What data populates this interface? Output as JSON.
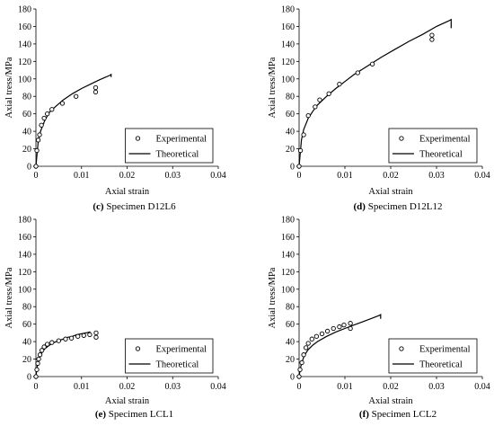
{
  "chart_data": [
    {
      "type": "scatter",
      "caption_letter": "(c)",
      "caption_text": " Specimen D12L6",
      "xlabel": "Axial strain",
      "ylabel": "Axial tress/MPa",
      "xlim": [
        0,
        0.04
      ],
      "ylim": [
        0,
        180
      ],
      "xticks": [
        "0",
        "0.01",
        "0.02",
        "0.03",
        "0.04"
      ],
      "yticks": [
        "0",
        "20",
        "40",
        "60",
        "80",
        "100",
        "120",
        "140",
        "160",
        "180"
      ],
      "legend_position": "bottom-right",
      "series": [
        {
          "name": "Experimental",
          "style": "markers",
          "x": [
            0,
            0.0002,
            0.0005,
            0.0008,
            0.0012,
            0.0018,
            0.0025,
            0.0035,
            0.0058,
            0.0088,
            0.0131,
            0.0131
          ],
          "y": [
            0,
            18,
            30,
            36,
            47,
            55,
            60,
            65,
            72,
            80,
            90,
            85
          ]
        },
        {
          "name": "Theoretical",
          "style": "line",
          "x": [
            0,
            0.0005,
            0.001,
            0.002,
            0.003,
            0.004,
            0.006,
            0.008,
            0.01,
            0.012,
            0.014,
            0.0162,
            0.0165,
            0.0165
          ],
          "y": [
            0,
            28,
            40,
            53,
            62,
            67,
            76,
            83,
            89,
            94,
            99,
            104,
            105,
            102
          ]
        }
      ]
    },
    {
      "type": "scatter",
      "caption_letter": "(d)",
      "caption_text": " Specimen D12L12",
      "xlabel": "Axial strain",
      "ylabel": "Axial tress/MPa",
      "xlim": [
        0,
        0.04
      ],
      "ylim": [
        0,
        180
      ],
      "xticks": [
        "0",
        "0.01",
        "0.02",
        "0.03",
        "0.04"
      ],
      "yticks": [
        "0",
        "20",
        "40",
        "60",
        "80",
        "100",
        "120",
        "140",
        "160",
        "180"
      ],
      "legend_position": "bottom-right",
      "series": [
        {
          "name": "Experimental",
          "style": "markers",
          "x": [
            0,
            0.0003,
            0.001,
            0.002,
            0.0035,
            0.0045,
            0.0065,
            0.0088,
            0.0128,
            0.016,
            0.029,
            0.029
          ],
          "y": [
            0,
            18,
            36,
            58,
            68,
            76,
            83,
            94,
            107,
            117,
            150,
            145
          ]
        },
        {
          "name": "Theoretical",
          "style": "line",
          "x": [
            0,
            0.0005,
            0.001,
            0.002,
            0.003,
            0.004,
            0.006,
            0.008,
            0.01,
            0.012,
            0.015,
            0.018,
            0.021,
            0.024,
            0.027,
            0.03,
            0.0325,
            0.0332,
            0.0332
          ],
          "y": [
            0,
            30,
            42,
            55,
            63,
            70,
            80,
            89,
            97,
            105,
            115,
            125,
            134,
            143,
            151,
            160,
            166,
            168,
            158
          ]
        }
      ]
    },
    {
      "type": "scatter",
      "caption_letter": "(e)",
      "caption_text": " Specimen LCL1",
      "xlabel": "Axial strain",
      "ylabel": "Axial tress/MPa",
      "xlim": [
        0,
        0.04
      ],
      "ylim": [
        0,
        180
      ],
      "xticks": [
        "0",
        "0.01",
        "0.02",
        "0.03",
        "0.04"
      ],
      "yticks": [
        "0",
        "20",
        "40",
        "60",
        "80",
        "100",
        "120",
        "140",
        "160",
        "180"
      ],
      "legend_position": "bottom-right",
      "series": [
        {
          "name": "Experimental",
          "style": "markers",
          "x": [
            0,
            0.0002,
            0.0004,
            0.0006,
            0.0009,
            0.0013,
            0.0018,
            0.0025,
            0.0035,
            0.005,
            0.0065,
            0.0078,
            0.0092,
            0.0105,
            0.0118,
            0.0132,
            0.0132
          ],
          "y": [
            0,
            8,
            15,
            20,
            25,
            30,
            34,
            37,
            39,
            41,
            43,
            44,
            46,
            47,
            48,
            50,
            45
          ]
        },
        {
          "name": "Theoretical",
          "style": "line",
          "x": [
            0,
            0.0003,
            0.0006,
            0.001,
            0.0015,
            0.002,
            0.003,
            0.004,
            0.005,
            0.006,
            0.007,
            0.008,
            0.009,
            0.01,
            0.011,
            0.0118,
            0.0118
          ],
          "y": [
            0,
            12,
            18,
            24,
            29,
            32,
            36,
            39,
            41,
            43,
            45,
            46,
            48,
            49,
            50,
            51,
            48
          ]
        }
      ]
    },
    {
      "type": "scatter",
      "caption_letter": "(f)",
      "caption_text": " Specimen LCL2",
      "xlabel": "Axial strain",
      "ylabel": "Axial tress/MPa",
      "xlim": [
        0,
        0.04
      ],
      "ylim": [
        0,
        180
      ],
      "xticks": [
        "0",
        "0.01",
        "0.02",
        "0.03",
        "0.04"
      ],
      "yticks": [
        "0",
        "20",
        "40",
        "60",
        "80",
        "100",
        "120",
        "140",
        "160",
        "180"
      ],
      "legend_position": "bottom-right",
      "series": [
        {
          "name": "Experimental",
          "style": "markers",
          "x": [
            0,
            0.0002,
            0.0006,
            0.001,
            0.0015,
            0.002,
            0.0028,
            0.0038,
            0.005,
            0.0062,
            0.0075,
            0.0088,
            0.0098,
            0.0112,
            0.0112
          ],
          "y": [
            0,
            8,
            16,
            25,
            33,
            38,
            43,
            46,
            49,
            52,
            55,
            57,
            59,
            61,
            55
          ]
        },
        {
          "name": "Theoretical",
          "style": "line",
          "x": [
            0,
            0.0003,
            0.0006,
            0.001,
            0.0015,
            0.002,
            0.003,
            0.004,
            0.006,
            0.008,
            0.01,
            0.012,
            0.014,
            0.016,
            0.0175,
            0.0178,
            0.0178
          ],
          "y": [
            0,
            10,
            16,
            22,
            27,
            31,
            36,
            40,
            46,
            51,
            55,
            59,
            63,
            67,
            70,
            71,
            66
          ]
        }
      ]
    }
  ]
}
